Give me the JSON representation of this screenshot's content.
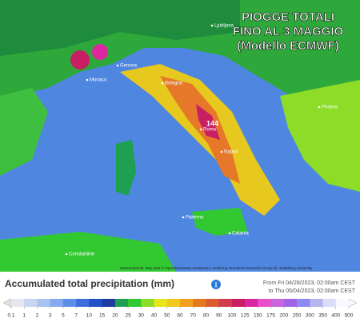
{
  "title": [
    "PIOGGE TOTALI",
    "FINO AL 3 MAGGIO",
    "(Modello ECMWF)"
  ],
  "cities": [
    "Ljubljana",
    "Genova",
    "Monaco",
    "Bologna",
    "Roma",
    "Napoli",
    "Palermo",
    "Catania",
    "Pristina",
    "Constantine"
  ],
  "max_label": "144",
  "attribution": "Kartenmaterial: Map data © OpenStreetMap contributors, rendering GIScience Research Group @ Heidelberg University",
  "legend": {
    "title": "Accumulated total precipitation (mm)",
    "period": [
      "From Fri 04/28/2023, 02:00am CEST",
      "to Thu 05/04/2023, 02:00am CEST"
    ],
    "levels": [
      0.1,
      1,
      2,
      3,
      5,
      7,
      10,
      15,
      20,
      25,
      30,
      40,
      50,
      60,
      70,
      80,
      90,
      100,
      125,
      150,
      175,
      200,
      250,
      300,
      350,
      400,
      500
    ],
    "colors": [
      "#e6e6f0",
      "#c8d4f0",
      "#a9c2f0",
      "#86aaf0",
      "#5f8ee8",
      "#3c6fdc",
      "#2050c8",
      "#1e3ca0",
      "#1ea050",
      "#32c832",
      "#8cdc28",
      "#e6e61e",
      "#f0c81e",
      "#f0a01e",
      "#e6781e",
      "#dc5a32",
      "#d23c50",
      "#c81e64",
      "#dc28a0",
      "#e650c8",
      "#c864dc",
      "#a064e6",
      "#8c8cf0",
      "#b4b4f0",
      "#dcdcf8",
      "#f8f8ff"
    ]
  }
}
